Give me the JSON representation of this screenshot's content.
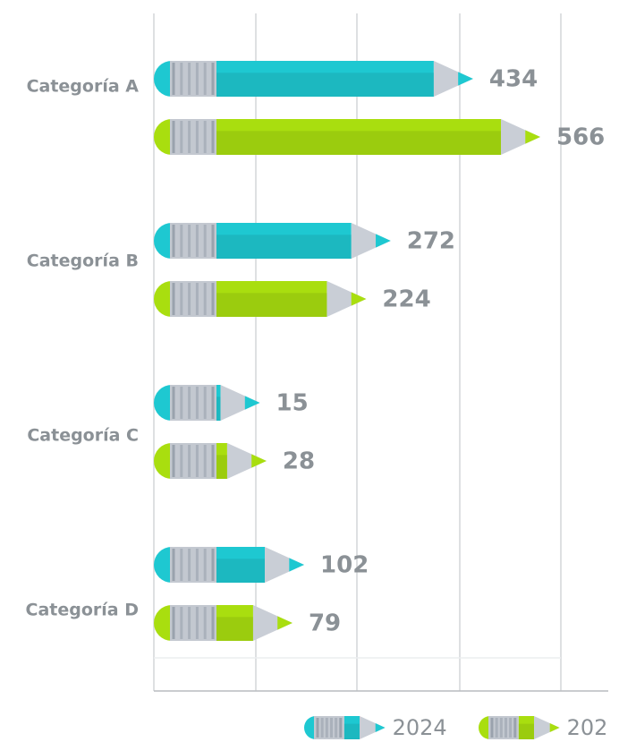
{
  "chart_data": {
    "type": "pencil-bar",
    "categories": [
      "Categoría A",
      "Categoría B",
      "Categoría C",
      "Categoría D"
    ],
    "series": [
      {
        "name": "2024",
        "color": "#1ec8d1",
        "values": [
          434,
          272,
          15,
          102
        ]
      },
      {
        "name": "202",
        "color": "#a9de0f",
        "values": [
          566,
          224,
          28,
          79
        ]
      }
    ]
  }
}
